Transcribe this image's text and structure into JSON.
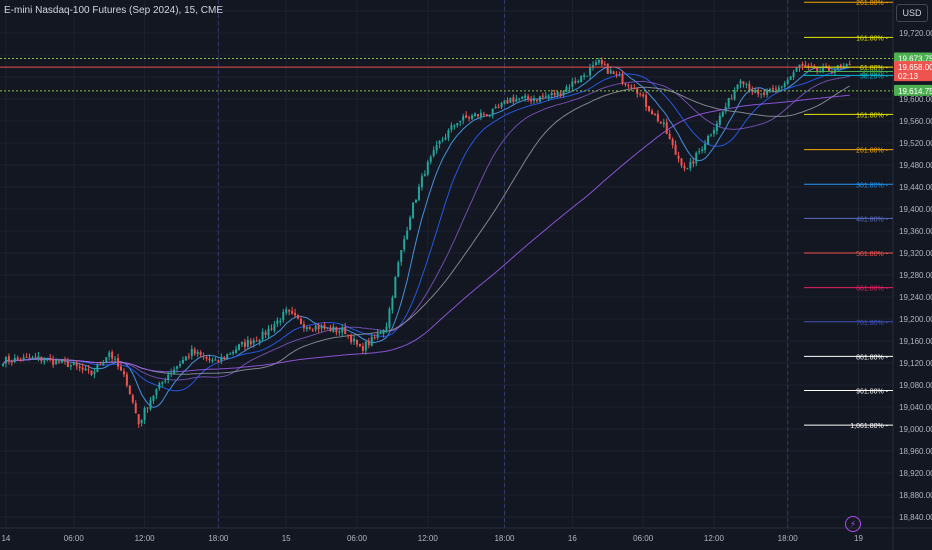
{
  "header": {
    "symbol_title": "E-mini Nasdaq-100 Futures (Sep 2024), 15, CME",
    "currency_button": "USD"
  },
  "colors": {
    "background": "#131722",
    "up_candle": "#26a69a",
    "down_candle": "#ef5350",
    "grid": "#1e222d",
    "session_line": "#2f3b6e"
  },
  "icons": {
    "bolt": "lightning-icon"
  },
  "chart_data": {
    "type": "candlestick",
    "ylim": [
      18820,
      19780
    ],
    "y_ticks": [
      18840,
      18880,
      18920,
      18960,
      19000,
      19040,
      19080,
      19120,
      19160,
      19200,
      19240,
      19280,
      19320,
      19360,
      19400,
      19440,
      19480,
      19520,
      19560,
      19600,
      19640,
      19680,
      19720,
      19760
    ],
    "y_tick_labels": [
      "18,840.00",
      "18,880.00",
      "18,920.00",
      "18,960.00",
      "19,000.00",
      "19,040.00",
      "19,080.00",
      "19,120.00",
      "19,160.00",
      "19,200.00",
      "19,240.00",
      "19,280.00",
      "19,320.00",
      "19,360.00",
      "19,400.00",
      "19,440.00",
      "19,480.00",
      "19,520.00",
      "19,560.00",
      "19,600.00",
      "",
      "",
      "19,720.00",
      ""
    ],
    "x_ticks": [
      {
        "label": "14",
        "bar": 1
      },
      {
        "label": "06:00",
        "bar": 24
      },
      {
        "label": "12:00",
        "bar": 48
      },
      {
        "label": "18:00",
        "bar": 73
      },
      {
        "label": "15",
        "bar": 96
      },
      {
        "label": "06:00",
        "bar": 120
      },
      {
        "label": "12:00",
        "bar": 144
      },
      {
        "label": "18:00",
        "bar": 170
      },
      {
        "label": "16",
        "bar": 193
      },
      {
        "label": "06:00",
        "bar": 217
      },
      {
        "label": "12:00",
        "bar": 241
      },
      {
        "label": "18:00",
        "bar": 266
      },
      {
        "label": "19",
        "bar": 290
      }
    ],
    "session_breaks": [
      73,
      170,
      266
    ],
    "bar_count": 288,
    "path": [
      [
        0,
        19125
      ],
      [
        12,
        19128
      ],
      [
        22,
        19118
      ],
      [
        30,
        19100
      ],
      [
        36,
        19140
      ],
      [
        42,
        19085
      ],
      [
        46,
        19010
      ],
      [
        50,
        19055
      ],
      [
        56,
        19100
      ],
      [
        64,
        19140
      ],
      [
        72,
        19120
      ],
      [
        80,
        19150
      ],
      [
        88,
        19170
      ],
      [
        96,
        19212
      ],
      [
        102,
        19190
      ],
      [
        110,
        19182
      ],
      [
        116,
        19178
      ],
      [
        121,
        19145
      ],
      [
        126,
        19165
      ],
      [
        130,
        19190
      ],
      [
        134,
        19300
      ],
      [
        138,
        19390
      ],
      [
        143,
        19470
      ],
      [
        148,
        19520
      ],
      [
        154,
        19560
      ],
      [
        160,
        19570
      ],
      [
        166,
        19575
      ],
      [
        172,
        19600
      ],
      [
        180,
        19600
      ],
      [
        188,
        19610
      ],
      [
        196,
        19640
      ],
      [
        202,
        19665
      ],
      [
        208,
        19640
      ],
      [
        214,
        19625
      ],
      [
        218,
        19590
      ],
      [
        224,
        19550
      ],
      [
        228,
        19500
      ],
      [
        232,
        19470
      ],
      [
        236,
        19505
      ],
      [
        240,
        19540
      ],
      [
        246,
        19595
      ],
      [
        250,
        19640
      ],
      [
        256,
        19605
      ],
      [
        262,
        19615
      ],
      [
        266,
        19635
      ],
      [
        270,
        19660
      ],
      [
        276,
        19650
      ],
      [
        282,
        19655
      ],
      [
        287,
        19658
      ]
    ],
    "moving_averages": [
      {
        "period": 9,
        "color": "#4ea7ff"
      },
      {
        "period": 20,
        "color": "#2962ff"
      },
      {
        "period": 34,
        "color": "#7e57c2"
      },
      {
        "period": 50,
        "color": "#9598a1"
      },
      {
        "period": 100,
        "color": "#a05cf2"
      }
    ],
    "fib_levels": [
      {
        "label": "261.80%",
        "price": 19776,
        "color": "#f7a600"
      },
      {
        "label": "161.80%",
        "price": 19712,
        "color": "#e6e600"
      },
      {
        "label": "61.80%",
        "price": 19658,
        "color": "#e6e600"
      },
      {
        "label": "50.00%",
        "price": 19650,
        "color": "#4caf50"
      },
      {
        "label": "38.20%",
        "price": 19643,
        "color": "#00bcd4"
      },
      {
        "label": "161.80%",
        "price": 19572,
        "color": "#e6e600"
      },
      {
        "label": "261.80%",
        "price": 19508,
        "color": "#f7a600"
      },
      {
        "label": "361.80%",
        "price": 19445,
        "color": "#2196f3"
      },
      {
        "label": "461.80%",
        "price": 19383,
        "color": "#5c6bc0"
      },
      {
        "label": "561.80%",
        "price": 19320,
        "color": "#ef5350"
      },
      {
        "label": "661.80%",
        "price": 19257,
        "color": "#e91e63"
      },
      {
        "label": "761.80%",
        "price": 19195,
        "color": "#3f51b5"
      },
      {
        "label": "861.80%",
        "price": 19132,
        "color": "#ffffff"
      },
      {
        "label": "961.80%",
        "price": 19070,
        "color": "#ffffff"
      },
      {
        "label": "1,061.80%",
        "price": 19007,
        "color": "#ffffff"
      }
    ],
    "hlines": [
      {
        "price": 19673.75,
        "color": "#8bc34a",
        "style": "dotted"
      },
      {
        "price": 19658.0,
        "color": "#ef5350",
        "style": "solid"
      },
      {
        "price": 19614.75,
        "color": "#8bc34a",
        "style": "dotted"
      }
    ],
    "price_labels": [
      {
        "text": "19,673.75",
        "price": 19673.75,
        "bg": "#4caf50"
      },
      {
        "text": "19,658.00",
        "sub": "02:13",
        "price": 19658.0,
        "bg": "#ef5350"
      },
      {
        "text": "19,614.75",
        "price": 19614.75,
        "bg": "#4caf50"
      }
    ]
  }
}
